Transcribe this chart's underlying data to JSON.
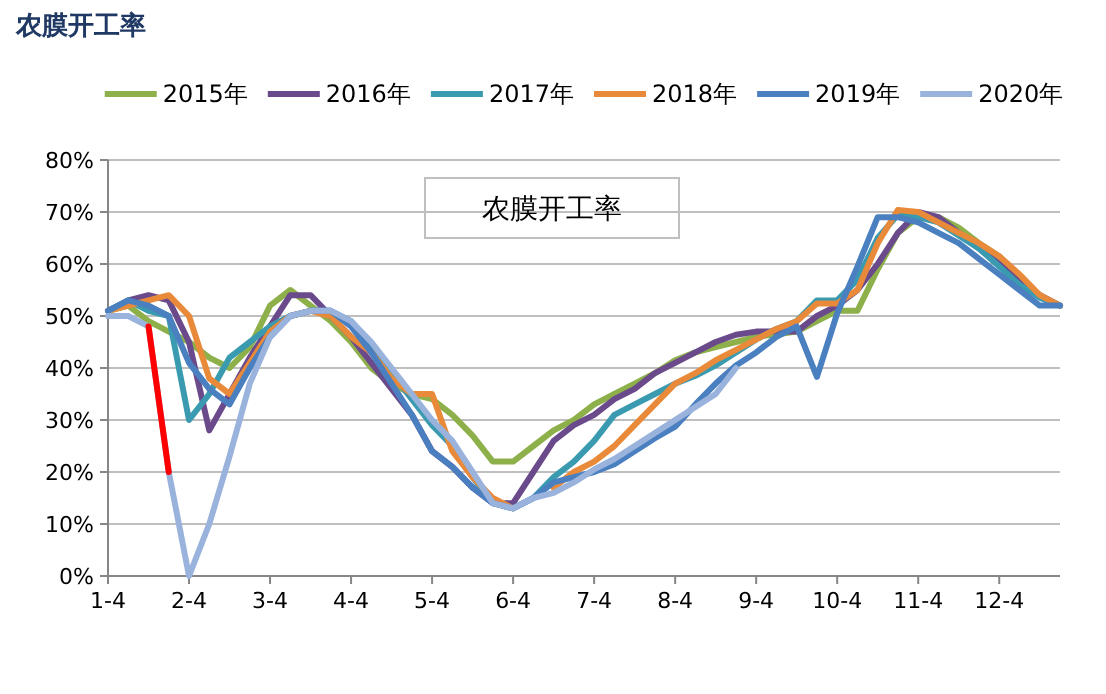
{
  "chart_data": {
    "type": "line",
    "title": "农膜开工率",
    "annotations": [
      "农膜开工率"
    ],
    "categories": [
      "1-4",
      null,
      null,
      null,
      "2-4",
      null,
      null,
      null,
      "3-4",
      null,
      null,
      null,
      "4-4",
      null,
      null,
      null,
      "5-4",
      null,
      null,
      null,
      "6-4",
      null,
      null,
      null,
      "7-4",
      null,
      null,
      null,
      "8-4",
      null,
      null,
      null,
      "9-4",
      null,
      null,
      null,
      "10-4",
      null,
      null,
      null,
      "11-4",
      null,
      null,
      null,
      "12-4",
      null,
      null,
      null
    ],
    "ylim": [
      0,
      80
    ],
    "yticks": [
      {
        "value": 0,
        "label": "0%"
      },
      {
        "value": 10,
        "label": "10%"
      },
      {
        "value": 20,
        "label": "20%"
      },
      {
        "value": 30,
        "label": "30%"
      },
      {
        "value": 40,
        "label": "40%"
      },
      {
        "value": 50,
        "label": "50%"
      },
      {
        "value": 60,
        "label": "60%"
      },
      {
        "value": 70,
        "label": "70%"
      },
      {
        "value": 80,
        "label": "80%"
      }
    ],
    "grid": "y",
    "legend": "top",
    "marker": "none",
    "line_style": "solid",
    "series": [
      {
        "name": "2015年",
        "color": "#8db04a",
        "values": [
          51,
          52,
          49,
          47,
          45,
          42,
          40,
          44,
          52,
          55,
          52,
          49,
          45,
          40,
          37,
          35,
          34,
          31,
          27,
          22,
          22,
          25,
          28,
          30,
          33,
          35,
          37,
          39,
          41.5,
          43,
          44,
          45,
          46,
          46.5,
          47,
          49,
          51,
          51,
          59,
          66,
          69,
          69,
          67,
          64,
          61.5,
          57,
          54,
          52
        ]
      },
      {
        "name": "2016年",
        "color": "#6b4a8c",
        "values": [
          51,
          53,
          54,
          53,
          45,
          28,
          35,
          42,
          48,
          54,
          54,
          50,
          46,
          41,
          36,
          31,
          24,
          21,
          17,
          14,
          14,
          20,
          26,
          29,
          31,
          34,
          36,
          39,
          41,
          43,
          45,
          46.4,
          47,
          47,
          47,
          50,
          52,
          55,
          60,
          66,
          70,
          69,
          66,
          63,
          60,
          57,
          54,
          52
        ]
      },
      {
        "name": "2017年",
        "color": "#3a9bb0",
        "values": [
          51,
          53,
          51,
          50,
          30,
          35,
          42,
          45,
          48,
          50,
          51,
          51,
          49,
          44,
          39,
          34,
          29,
          25,
          19,
          14,
          13,
          15,
          19,
          22,
          26,
          31,
          33,
          35,
          37,
          38.5,
          40.5,
          43,
          45.5,
          47.5,
          49,
          53,
          53,
          57,
          65,
          69.5,
          69,
          68,
          65.5,
          63,
          59.5,
          56,
          53.5,
          52
        ]
      },
      {
        "name": "2018年",
        "color": "#e88a3a",
        "values": [
          51,
          52,
          53,
          54,
          50,
          38,
          35,
          41,
          47,
          50,
          51,
          50,
          46,
          43,
          38,
          35,
          35,
          24,
          19,
          15,
          13,
          null,
          17,
          20,
          22,
          25,
          29,
          33,
          37,
          39,
          41.5,
          43.5,
          45.5,
          47.5,
          49,
          52.4,
          52.4,
          55,
          64,
          70.4,
          70,
          68,
          66,
          64,
          61.5,
          58,
          54,
          52
        ]
      },
      {
        "name": "2019年",
        "color": "#4a7fc0",
        "values": [
          51,
          53,
          52,
          50,
          41,
          36,
          33,
          40,
          46,
          50,
          51,
          51,
          48,
          43,
          37,
          31,
          24,
          21,
          17,
          14,
          13,
          15,
          18,
          19,
          20,
          21.5,
          24,
          26.5,
          28.7,
          33,
          37,
          40.5,
          43,
          46,
          48,
          38.3,
          50.5,
          59.5,
          69,
          69,
          68,
          66,
          64,
          61,
          58,
          55,
          52,
          52
        ]
      },
      {
        "name": "2020年",
        "color": "#9ab3dd",
        "values": [
          50,
          50,
          48,
          20,
          0,
          10,
          23,
          37,
          46,
          50,
          51,
          51,
          49,
          45,
          40,
          35,
          30,
          26,
          20,
          14,
          13,
          15,
          16,
          18,
          20.5,
          22.5,
          25,
          27.5,
          30,
          32.5,
          35,
          40,
          null,
          null,
          null,
          null,
          null,
          null,
          null,
          null,
          null,
          null,
          null,
          null,
          null,
          null,
          null,
          null
        ]
      },
      {
        "color": "#ff0000",
        "values": [
          null,
          null,
          48,
          20,
          null,
          null,
          null,
          null,
          null,
          null,
          null,
          null,
          null,
          null,
          null,
          null,
          null,
          null,
          null,
          null,
          null,
          null,
          null,
          null,
          null,
          null,
          null,
          null,
          null,
          null,
          null,
          null,
          null,
          null,
          null,
          null,
          null,
          null,
          null,
          null,
          null,
          null,
          null,
          null,
          null,
          null,
          null,
          null
        ]
      }
    ]
  }
}
